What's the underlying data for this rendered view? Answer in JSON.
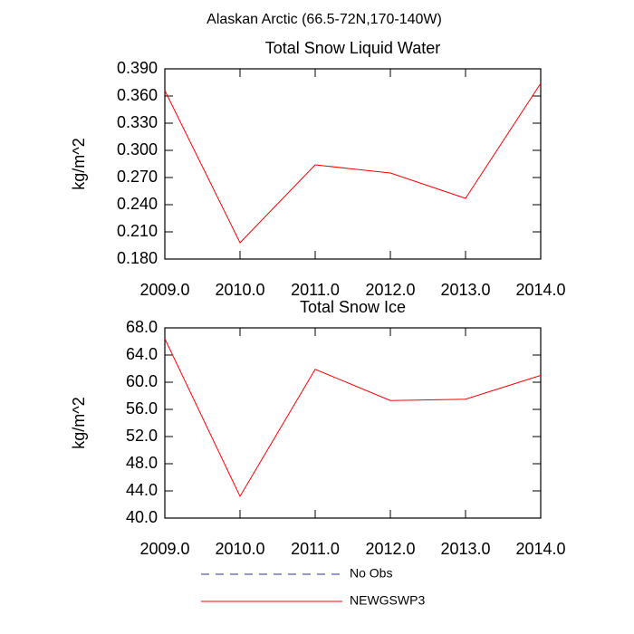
{
  "title": "Alaskan Arctic (66.5-72N,170-140W)",
  "chart_data": [
    {
      "type": "line",
      "title": "Total Snow Liquid Water",
      "ylabel": "kg/m^2",
      "x": [
        2009,
        2010,
        2011,
        2012,
        2013,
        2014
      ],
      "xlim": [
        2009,
        2014
      ],
      "xticks": [
        {
          "value": 2009,
          "label": "2009.0"
        },
        {
          "value": 2010,
          "label": "2010.0"
        },
        {
          "value": 2011,
          "label": "2011.0"
        },
        {
          "value": 2012,
          "label": "2012.0"
        },
        {
          "value": 2013,
          "label": "2013.0"
        },
        {
          "value": 2014,
          "label": "2014.0"
        }
      ],
      "ylim": [
        0.18,
        0.39
      ],
      "yticks": [
        {
          "value": 0.18,
          "label": "0.180"
        },
        {
          "value": 0.21,
          "label": "0.210"
        },
        {
          "value": 0.24,
          "label": "0.240"
        },
        {
          "value": 0.27,
          "label": "0.270"
        },
        {
          "value": 0.3,
          "label": "0.300"
        },
        {
          "value": 0.33,
          "label": "0.330"
        },
        {
          "value": 0.36,
          "label": "0.360"
        },
        {
          "value": 0.39,
          "label": "0.390"
        }
      ],
      "series": [
        {
          "name": "NEWGSWP3",
          "color": "#ff0000",
          "values": [
            0.366,
            0.198,
            0.284,
            0.275,
            0.247,
            0.374
          ]
        }
      ]
    },
    {
      "type": "line",
      "title": "Total Snow Ice",
      "ylabel": "kg/m^2",
      "x": [
        2009,
        2010,
        2011,
        2012,
        2013,
        2014
      ],
      "xlim": [
        2009,
        2014
      ],
      "xticks": [
        {
          "value": 2009,
          "label": "2009.0"
        },
        {
          "value": 2010,
          "label": "2010.0"
        },
        {
          "value": 2011,
          "label": "2011.0"
        },
        {
          "value": 2012,
          "label": "2012.0"
        },
        {
          "value": 2013,
          "label": "2013.0"
        },
        {
          "value": 2014,
          "label": "2014.0"
        }
      ],
      "ylim": [
        40,
        68
      ],
      "yticks": [
        {
          "value": 40,
          "label": "40.0"
        },
        {
          "value": 44,
          "label": "44.0"
        },
        {
          "value": 48,
          "label": "48.0"
        },
        {
          "value": 52,
          "label": "52.0"
        },
        {
          "value": 56,
          "label": "56.0"
        },
        {
          "value": 60,
          "label": "60.0"
        },
        {
          "value": 64,
          "label": "64.0"
        },
        {
          "value": 68,
          "label": "68.0"
        }
      ],
      "series": [
        {
          "name": "NEWGSWP3",
          "color": "#ff0000",
          "values": [
            66.4,
            43.2,
            61.9,
            57.3,
            57.5,
            61.0
          ]
        }
      ]
    }
  ],
  "legend": [
    {
      "name": "No Obs",
      "color": "#3030a0",
      "dashed": true
    },
    {
      "name": "NEWGSWP3",
      "color": "#ff0000",
      "dashed": false
    }
  ]
}
